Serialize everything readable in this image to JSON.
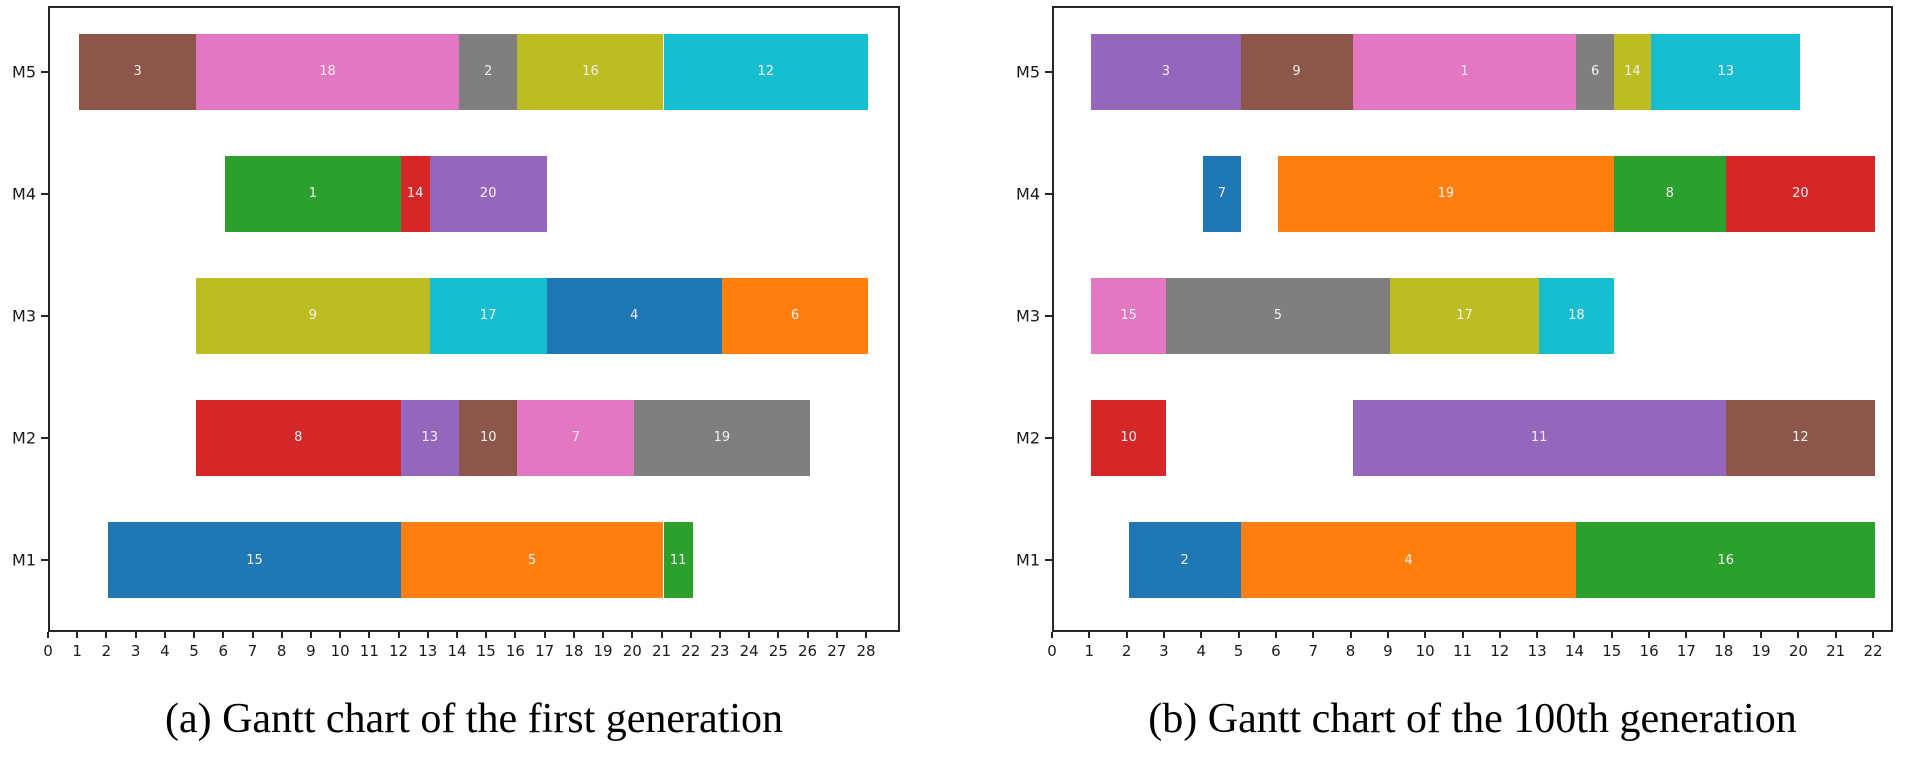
{
  "palette": {
    "blue": "#1f77b4",
    "orange": "#ff7f0e",
    "green": "#2ca02c",
    "red": "#d62728",
    "purple": "#9467bd",
    "brown": "#8c564b",
    "pink": "#e377c2",
    "gray": "#7f7f7f",
    "olive": "#bcbd22",
    "cyan": "#17becf"
  },
  "chart_data": [
    {
      "type": "gantt",
      "id": "a",
      "caption": "(a) Gantt chart of the first generation",
      "xlabel": "",
      "ylabel": "",
      "xlim": [
        0,
        28
      ],
      "xtick_step": 1,
      "grid": false,
      "machines_top_to_bottom": [
        "M5",
        "M4",
        "M3",
        "M2",
        "M1"
      ],
      "rows": [
        {
          "machine": "M5",
          "bars": [
            {
              "job": "3",
              "start": 1,
              "end": 5,
              "color": "brown"
            },
            {
              "job": "18",
              "start": 5,
              "end": 14,
              "color": "pink"
            },
            {
              "job": "2",
              "start": 14,
              "end": 16,
              "color": "gray"
            },
            {
              "job": "16",
              "start": 16,
              "end": 21,
              "color": "olive"
            },
            {
              "job": "12",
              "start": 21,
              "end": 28,
              "color": "cyan"
            }
          ]
        },
        {
          "machine": "M4",
          "bars": [
            {
              "job": "1",
              "start": 6,
              "end": 12,
              "color": "green"
            },
            {
              "job": "14",
              "start": 12,
              "end": 13,
              "color": "red"
            },
            {
              "job": "20",
              "start": 13,
              "end": 17,
              "color": "purple"
            }
          ]
        },
        {
          "machine": "M3",
          "bars": [
            {
              "job": "9",
              "start": 5,
              "end": 13,
              "color": "olive"
            },
            {
              "job": "17",
              "start": 13,
              "end": 17,
              "color": "cyan"
            },
            {
              "job": "4",
              "start": 17,
              "end": 23,
              "color": "blue"
            },
            {
              "job": "6",
              "start": 23,
              "end": 28,
              "color": "orange"
            }
          ]
        },
        {
          "machine": "M2",
          "bars": [
            {
              "job": "8",
              "start": 5,
              "end": 12,
              "color": "red"
            },
            {
              "job": "13",
              "start": 12,
              "end": 14,
              "color": "purple"
            },
            {
              "job": "10",
              "start": 14,
              "end": 16,
              "color": "brown"
            },
            {
              "job": "7",
              "start": 16,
              "end": 20,
              "color": "pink"
            },
            {
              "job": "19",
              "start": 20,
              "end": 26,
              "color": "gray"
            }
          ]
        },
        {
          "machine": "M1",
          "bars": [
            {
              "job": "15",
              "start": 2,
              "end": 12,
              "color": "blue"
            },
            {
              "job": "5",
              "start": 12,
              "end": 21,
              "color": "orange"
            },
            {
              "job": "11",
              "start": 21,
              "end": 22,
              "color": "green"
            }
          ]
        }
      ]
    },
    {
      "type": "gantt",
      "id": "b",
      "caption": "(b) Gantt chart of the 100th generation",
      "xlabel": "",
      "ylabel": "",
      "xlim": [
        0,
        22
      ],
      "xtick_step": 1,
      "grid": false,
      "machines_top_to_bottom": [
        "M5",
        "M4",
        "M3",
        "M2",
        "M1"
      ],
      "rows": [
        {
          "machine": "M5",
          "bars": [
            {
              "job": "3",
              "start": 1,
              "end": 5,
              "color": "purple"
            },
            {
              "job": "9",
              "start": 5,
              "end": 8,
              "color": "brown"
            },
            {
              "job": "1",
              "start": 8,
              "end": 14,
              "color": "pink"
            },
            {
              "job": "6",
              "start": 14,
              "end": 15,
              "color": "gray"
            },
            {
              "job": "14",
              "start": 15,
              "end": 16,
              "color": "olive"
            },
            {
              "job": "13",
              "start": 16,
              "end": 20,
              "color": "cyan"
            }
          ]
        },
        {
          "machine": "M4",
          "bars": [
            {
              "job": "7",
              "start": 4,
              "end": 5,
              "color": "blue"
            },
            {
              "job": "19",
              "start": 6,
              "end": 15,
              "color": "orange"
            },
            {
              "job": "8",
              "start": 15,
              "end": 18,
              "color": "green"
            },
            {
              "job": "20",
              "start": 18,
              "end": 22,
              "color": "red"
            }
          ]
        },
        {
          "machine": "M3",
          "bars": [
            {
              "job": "15",
              "start": 1,
              "end": 3,
              "color": "pink"
            },
            {
              "job": "5",
              "start": 3,
              "end": 9,
              "color": "gray"
            },
            {
              "job": "17",
              "start": 9,
              "end": 13,
              "color": "olive"
            },
            {
              "job": "18",
              "start": 13,
              "end": 15,
              "color": "cyan"
            }
          ]
        },
        {
          "machine": "M2",
          "bars": [
            {
              "job": "10",
              "start": 1,
              "end": 3,
              "color": "red"
            },
            {
              "job": "11",
              "start": 8,
              "end": 18,
              "color": "purple"
            },
            {
              "job": "12",
              "start": 18,
              "end": 22,
              "color": "brown"
            }
          ]
        },
        {
          "machine": "M1",
          "bars": [
            {
              "job": "2",
              "start": 2,
              "end": 5,
              "color": "blue"
            },
            {
              "job": "4",
              "start": 5,
              "end": 14,
              "color": "orange"
            },
            {
              "job": "16",
              "start": 14,
              "end": 22,
              "color": "green"
            }
          ]
        }
      ]
    }
  ]
}
